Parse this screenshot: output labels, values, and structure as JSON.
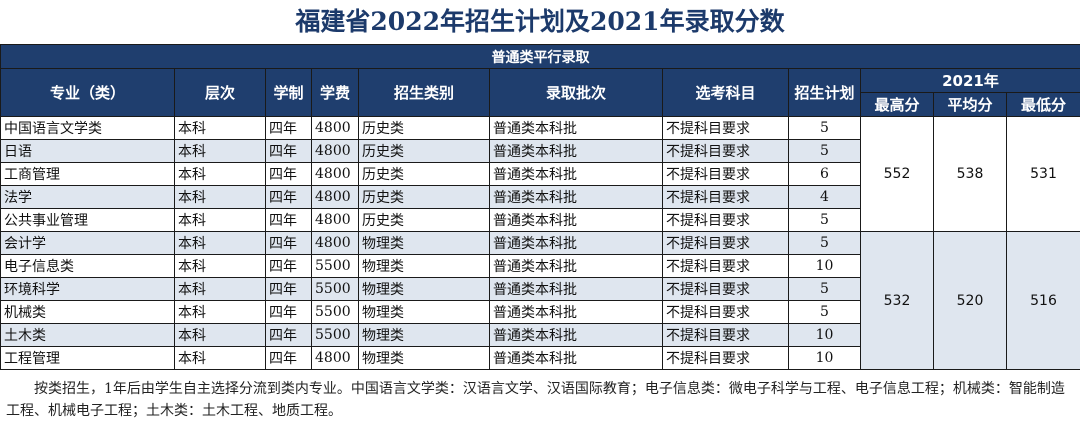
{
  "title": "福建省2022年招生计划及2021年录取分数",
  "band": "普通类平行录取",
  "headers": {
    "major": "专业（类）",
    "level": "层次",
    "years": "学制",
    "fee": "学费",
    "category": "招生类别",
    "batch": "录取批次",
    "subjects": "选考科目",
    "plan": "招生计划",
    "year_group": "2021年",
    "max": "最高分",
    "avg": "平均分",
    "min": "最低分"
  },
  "rows": [
    {
      "major": "中国语言文学类",
      "level": "本科",
      "years": "四年",
      "fee": "4800",
      "category": "历史类",
      "batch": "普通类本科批",
      "subjects": "不提科目要求",
      "plan": "5"
    },
    {
      "major": "日语",
      "level": "本科",
      "years": "四年",
      "fee": "4800",
      "category": "历史类",
      "batch": "普通类本科批",
      "subjects": "不提科目要求",
      "plan": "5"
    },
    {
      "major": "工商管理",
      "level": "本科",
      "years": "四年",
      "fee": "4800",
      "category": "历史类",
      "batch": "普通类本科批",
      "subjects": "不提科目要求",
      "plan": "6"
    },
    {
      "major": "法学",
      "level": "本科",
      "years": "四年",
      "fee": "4800",
      "category": "历史类",
      "batch": "普通类本科批",
      "subjects": "不提科目要求",
      "plan": "4"
    },
    {
      "major": "公共事业管理",
      "level": "本科",
      "years": "四年",
      "fee": "4800",
      "category": "历史类",
      "batch": "普通类本科批",
      "subjects": "不提科目要求",
      "plan": "5"
    },
    {
      "major": "会计学",
      "level": "本科",
      "years": "四年",
      "fee": "4800",
      "category": "物理类",
      "batch": "普通类本科批",
      "subjects": "不提科目要求",
      "plan": "5"
    },
    {
      "major": "电子信息类",
      "level": "本科",
      "years": "四年",
      "fee": "5500",
      "category": "物理类",
      "batch": "普通类本科批",
      "subjects": "不提科目要求",
      "plan": "10"
    },
    {
      "major": "环境科学",
      "level": "本科",
      "years": "四年",
      "fee": "5500",
      "category": "物理类",
      "batch": "普通类本科批",
      "subjects": "不提科目要求",
      "plan": "5"
    },
    {
      "major": "机械类",
      "level": "本科",
      "years": "四年",
      "fee": "5500",
      "category": "物理类",
      "batch": "普通类本科批",
      "subjects": "不提科目要求",
      "plan": "5"
    },
    {
      "major": "土木类",
      "level": "本科",
      "years": "四年",
      "fee": "5500",
      "category": "物理类",
      "batch": "普通类本科批",
      "subjects": "不提科目要求",
      "plan": "10"
    },
    {
      "major": "工程管理",
      "level": "本科",
      "years": "四年",
      "fee": "4800",
      "category": "物理类",
      "batch": "普通类本科批",
      "subjects": "不提科目要求",
      "plan": "10"
    }
  ],
  "scores": [
    {
      "max": "552",
      "avg": "538",
      "min": "531"
    },
    {
      "max": "532",
      "avg": "520",
      "min": "516"
    }
  ],
  "note": "按类招生，1年后由学生自主选择分流到类内专业。中国语言文学类：汉语言文学、汉语国际教育；电子信息类：微电子科学与工程、电子信息工程；机械类：智能制造工程、机械电子工程；土木类：土木工程、地质工程。",
  "colors": {
    "header_bg": "#1f3e6e",
    "title": "#1c3a6b",
    "alt_row": "#dfe6ef"
  }
}
